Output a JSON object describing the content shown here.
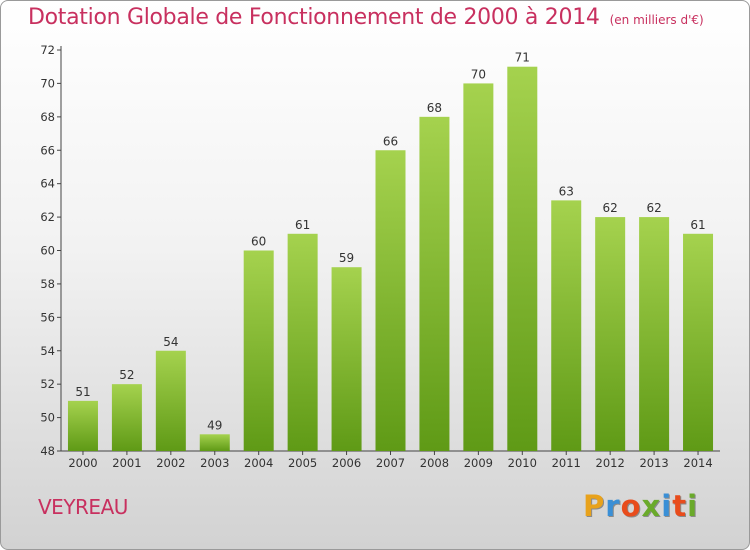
{
  "header": {
    "title": "Dotation Globale de Fonctionnement de 2000 à 2014",
    "subtitle": "(en milliers d'€)"
  },
  "footer": {
    "commune": "VEYREAU",
    "logo": {
      "text": "Proxiti",
      "letter_colors": [
        "#e8a21c",
        "#3a8fd6",
        "#e84c1c",
        "#6aaa2a",
        "#3a8fd6",
        "#e84c1c",
        "#6aaa2a"
      ]
    }
  },
  "colors": {
    "bar_light": "#a5d24e",
    "bar_dark": "#5f9a16",
    "text_accent": "#c8305f"
  },
  "chart_data": {
    "type": "bar",
    "title": "Dotation Globale de Fonctionnement de 2000 à 2014",
    "subtitle": "(en milliers d'€)",
    "categories": [
      "2000",
      "2001",
      "2002",
      "2003",
      "2004",
      "2005",
      "2006",
      "2007",
      "2008",
      "2009",
      "2010",
      "2011",
      "2012",
      "2013",
      "2014"
    ],
    "values": [
      51,
      52,
      54,
      49,
      60,
      61,
      59,
      66,
      68,
      70,
      71,
      63,
      62,
      62,
      61
    ],
    "ylim": [
      48,
      72
    ],
    "yticks": [
      48,
      50,
      52,
      54,
      56,
      58,
      60,
      62,
      64,
      66,
      68,
      70,
      72
    ],
    "grid": false,
    "legend": "none",
    "data_labels": true
  }
}
